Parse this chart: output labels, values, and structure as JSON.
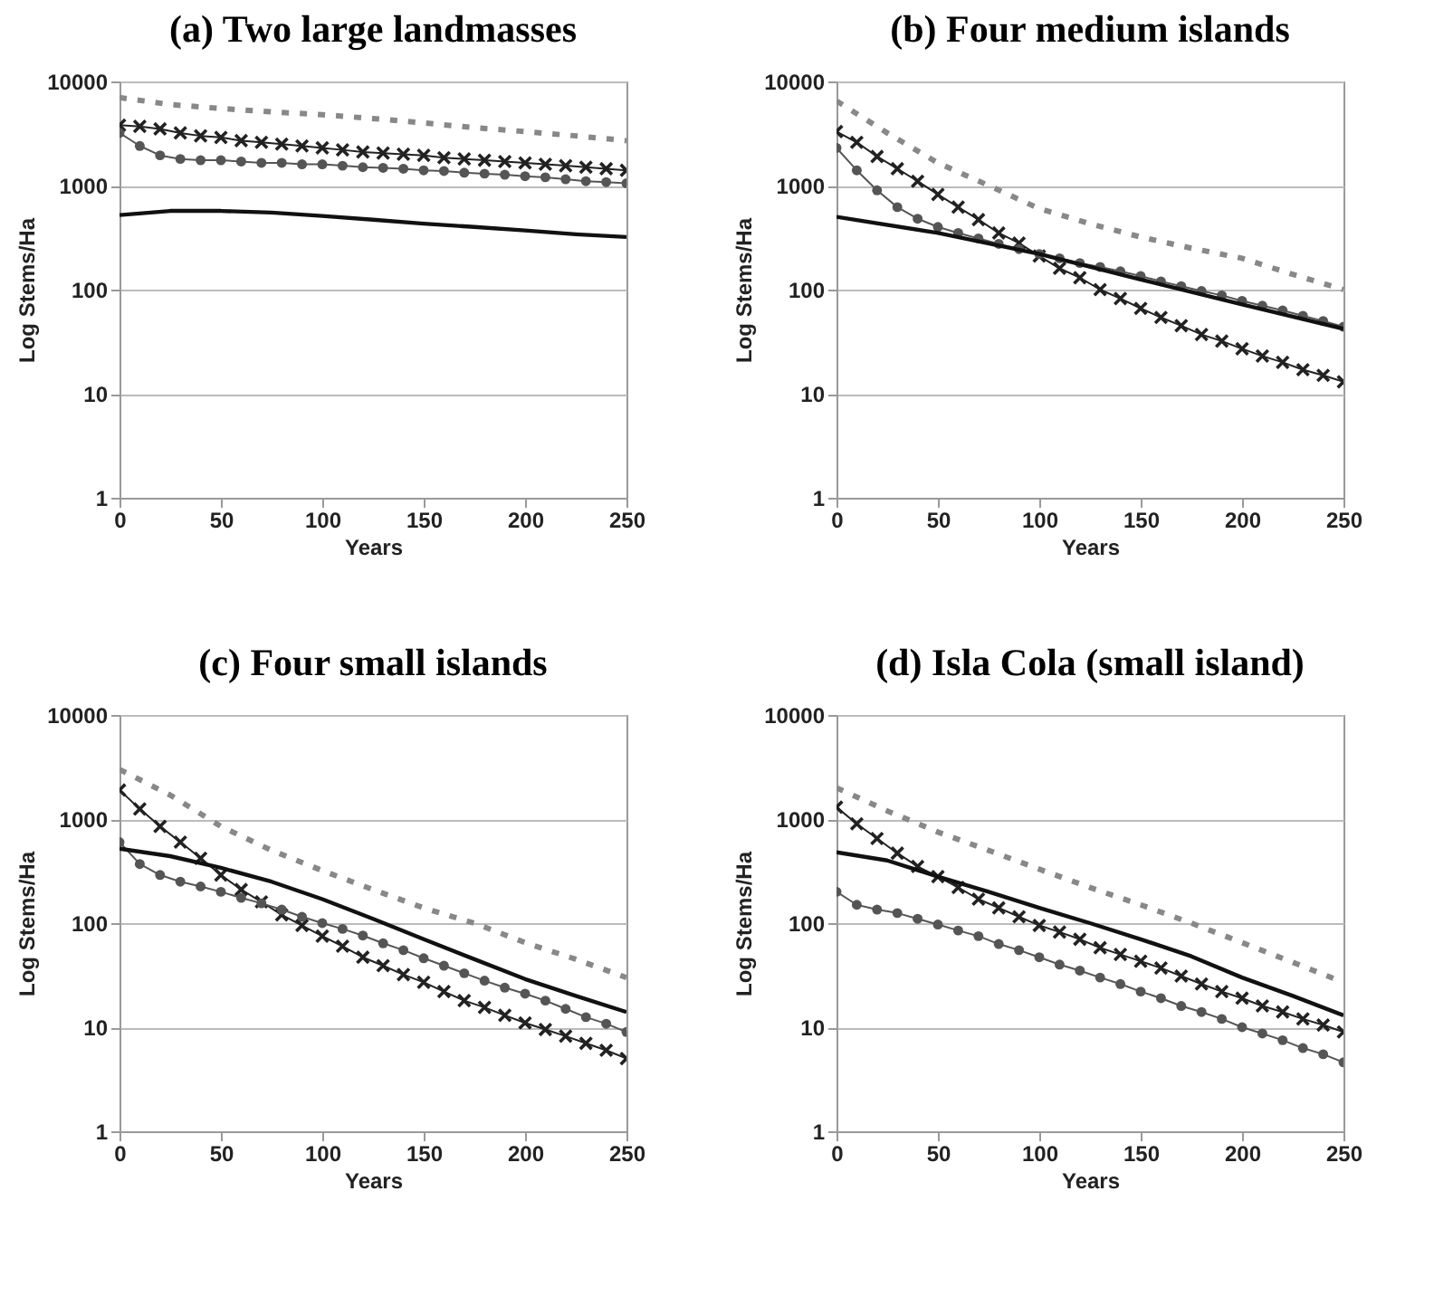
{
  "chart_data": [
    {
      "type": "line",
      "title": "(a) Two large landmasses",
      "xlabel": "Years",
      "ylabel": "Log Stems/Ha",
      "log": true,
      "grid": "y",
      "xlim": [
        0,
        250
      ],
      "xticks": [
        0,
        50,
        100,
        150,
        200,
        250
      ],
      "ylim": [
        1,
        10000
      ],
      "yticks": [
        1,
        10,
        100,
        1000,
        10000
      ],
      "series": [
        {
          "color": "#888888",
          "line_style": "dashed",
          "marker": "none",
          "x": [
            0,
            25,
            50,
            75,
            100,
            125,
            150,
            175,
            200,
            225,
            250
          ],
          "values": [
            7000,
            6000,
            5500,
            5100,
            4800,
            4400,
            4000,
            3600,
            3300,
            3000,
            2700
          ]
        },
        {
          "color": "#222222",
          "line_style": "solid",
          "marker": "cross",
          "x": [
            0,
            10,
            20,
            30,
            40,
            50,
            60,
            70,
            80,
            90,
            100,
            110,
            120,
            130,
            140,
            150,
            160,
            170,
            180,
            190,
            200,
            210,
            220,
            230,
            240,
            250
          ],
          "values": [
            3800,
            3700,
            3500,
            3200,
            3000,
            2900,
            2700,
            2600,
            2500,
            2400,
            2300,
            2200,
            2100,
            2050,
            2000,
            1950,
            1850,
            1800,
            1750,
            1700,
            1650,
            1600,
            1550,
            1500,
            1450,
            1400
          ]
        },
        {
          "color": "#555555",
          "line_style": "solid",
          "marker": "circle",
          "x": [
            0,
            10,
            20,
            30,
            40,
            50,
            60,
            70,
            80,
            90,
            100,
            110,
            120,
            130,
            140,
            150,
            160,
            170,
            180,
            190,
            200,
            210,
            220,
            230,
            240,
            250
          ],
          "values": [
            3200,
            2400,
            1950,
            1800,
            1750,
            1750,
            1700,
            1650,
            1650,
            1600,
            1600,
            1550,
            1500,
            1480,
            1450,
            1400,
            1380,
            1330,
            1300,
            1270,
            1230,
            1200,
            1150,
            1100,
            1080,
            1050
          ]
        },
        {
          "color": "#111111",
          "line_style": "solid",
          "marker": "none",
          "x": [
            0,
            25,
            50,
            75,
            100,
            125,
            150,
            175,
            200,
            225,
            250
          ],
          "values": [
            520,
            570,
            570,
            550,
            510,
            470,
            430,
            400,
            370,
            340,
            320
          ]
        }
      ]
    },
    {
      "type": "line",
      "title": "(b) Four medium islands",
      "xlabel": "Years",
      "ylabel": "Log Stems/Ha",
      "log": true,
      "grid": "y",
      "xlim": [
        0,
        250
      ],
      "xticks": [
        0,
        50,
        100,
        150,
        200,
        250
      ],
      "ylim": [
        1,
        10000
      ],
      "yticks": [
        1,
        10,
        100,
        1000,
        10000
      ],
      "series": [
        {
          "color": "#888888",
          "line_style": "dashed",
          "marker": "none",
          "x": [
            0,
            25,
            50,
            75,
            100,
            125,
            150,
            175,
            200,
            225,
            250
          ],
          "values": [
            6500,
            3200,
            1650,
            1000,
            600,
            430,
            320,
            250,
            200,
            140,
            100
          ]
        },
        {
          "color": "#222222",
          "line_style": "solid",
          "marker": "cross",
          "x": [
            0,
            10,
            20,
            30,
            40,
            50,
            60,
            70,
            80,
            90,
            100,
            110,
            120,
            130,
            140,
            150,
            160,
            170,
            180,
            190,
            200,
            210,
            220,
            230,
            240,
            250
          ],
          "values": [
            3300,
            2600,
            1900,
            1450,
            1100,
            820,
            620,
            470,
            350,
            280,
            210,
            160,
            130,
            100,
            82,
            66,
            54,
            45,
            37,
            32,
            27,
            23,
            20,
            17,
            15,
            13
          ]
        },
        {
          "color": "#555555",
          "line_style": "solid",
          "marker": "circle",
          "x": [
            0,
            10,
            20,
            30,
            40,
            50,
            60,
            70,
            80,
            90,
            100,
            110,
            120,
            130,
            140,
            150,
            160,
            170,
            180,
            190,
            200,
            210,
            220,
            230,
            240,
            250
          ],
          "values": [
            2300,
            1400,
            900,
            620,
            480,
            400,
            350,
            310,
            275,
            245,
            220,
            200,
            180,
            165,
            150,
            135,
            120,
            108,
            97,
            88,
            78,
            70,
            63,
            56,
            50,
            44
          ]
        },
        {
          "color": "#111111",
          "line_style": "solid",
          "marker": "none",
          "x": [
            0,
            50,
            100,
            150,
            200,
            250
          ],
          "values": [
            500,
            350,
            220,
            125,
            72,
            42
          ]
        }
      ]
    },
    {
      "type": "line",
      "title": "(c) Four small islands",
      "xlabel": "Years",
      "ylabel": "Log Stems/Ha",
      "log": true,
      "grid": "y",
      "xlim": [
        0,
        250
      ],
      "xticks": [
        0,
        50,
        100,
        150,
        200,
        250
      ],
      "ylim": [
        1,
        10000
      ],
      "yticks": [
        1,
        10,
        100,
        1000,
        10000
      ],
      "series": [
        {
          "color": "#888888",
          "line_style": "dashed",
          "marker": "none",
          "x": [
            0,
            25,
            50,
            75,
            100,
            125,
            150,
            175,
            200,
            225,
            250
          ],
          "values": [
            3000,
            1700,
            850,
            500,
            320,
            210,
            140,
            100,
            65,
            45,
            30
          ]
        },
        {
          "color": "#222222",
          "line_style": "solid",
          "marker": "cross",
          "x": [
            0,
            10,
            20,
            30,
            40,
            50,
            60,
            70,
            80,
            90,
            100,
            110,
            120,
            130,
            140,
            150,
            160,
            170,
            180,
            190,
            200,
            210,
            220,
            230,
            240,
            250
          ],
          "values": [
            1900,
            1250,
            850,
            600,
            420,
            290,
            210,
            160,
            120,
            95,
            75,
            60,
            47,
            39,
            32,
            27,
            22,
            18,
            15.5,
            13,
            11,
            9.5,
            8.2,
            7,
            6,
            5
          ]
        },
        {
          "color": "#555555",
          "line_style": "solid",
          "marker": "circle",
          "x": [
            0,
            10,
            20,
            30,
            40,
            50,
            60,
            70,
            80,
            90,
            100,
            110,
            120,
            130,
            140,
            150,
            160,
            170,
            180,
            190,
            200,
            210,
            220,
            230,
            240,
            250
          ],
          "values": [
            600,
            370,
            290,
            250,
            225,
            200,
            175,
            155,
            135,
            115,
            100,
            88,
            76,
            64,
            55,
            46,
            39,
            33,
            28,
            24,
            21,
            18,
            15,
            12.5,
            10.8,
            9
          ]
        },
        {
          "color": "#111111",
          "line_style": "solid",
          "marker": "none",
          "x": [
            0,
            25,
            50,
            75,
            100,
            125,
            150,
            175,
            200,
            225,
            250
          ],
          "values": [
            520,
            440,
            340,
            250,
            170,
            110,
            70,
            45,
            29,
            20,
            14
          ]
        }
      ]
    },
    {
      "type": "line",
      "title": "(d) Isla Cola (small island)",
      "xlabel": "Years",
      "ylabel": "Log Stems/Ha",
      "log": true,
      "grid": "y",
      "xlim": [
        0,
        250
      ],
      "xticks": [
        0,
        50,
        100,
        150,
        200,
        250
      ],
      "ylim": [
        1,
        10000
      ],
      "yticks": [
        1,
        10,
        100,
        1000,
        10000
      ],
      "series": [
        {
          "color": "#888888",
          "line_style": "dashed",
          "marker": "none",
          "x": [
            0,
            25,
            50,
            75,
            100,
            125,
            150,
            175,
            200,
            225,
            250
          ],
          "values": [
            2000,
            1200,
            750,
            500,
            330,
            220,
            150,
            100,
            65,
            42,
            27
          ]
        },
        {
          "color": "#222222",
          "line_style": "solid",
          "marker": "cross",
          "x": [
            0,
            10,
            20,
            30,
            40,
            50,
            60,
            70,
            80,
            90,
            100,
            110,
            120,
            130,
            140,
            150,
            160,
            170,
            180,
            190,
            200,
            210,
            220,
            230,
            240,
            250
          ],
          "values": [
            1300,
            900,
            650,
            470,
            350,
            280,
            220,
            170,
            140,
            115,
            95,
            82,
            70,
            58,
            50,
            43,
            37,
            31,
            26,
            22,
            19,
            16,
            14,
            12,
            10.5,
            9
          ]
        },
        {
          "color": "#555555",
          "line_style": "solid",
          "marker": "circle",
          "x": [
            0,
            10,
            20,
            30,
            40,
            50,
            60,
            70,
            80,
            90,
            100,
            110,
            120,
            130,
            140,
            150,
            160,
            170,
            180,
            190,
            200,
            210,
            220,
            230,
            240,
            250
          ],
          "values": [
            200,
            150,
            135,
            125,
            110,
            97,
            85,
            75,
            63,
            55,
            47,
            40,
            35,
            30,
            26,
            22,
            19,
            16,
            14,
            12,
            10,
            8.7,
            7.5,
            6.3,
            5.5,
            4.6
          ]
        },
        {
          "color": "#111111",
          "line_style": "solid",
          "marker": "none",
          "x": [
            0,
            25,
            50,
            75,
            100,
            125,
            150,
            175,
            200,
            225,
            250
          ],
          "values": [
            480,
            400,
            280,
            200,
            140,
            100,
            70,
            48,
            30,
            20,
            13
          ]
        }
      ]
    }
  ]
}
